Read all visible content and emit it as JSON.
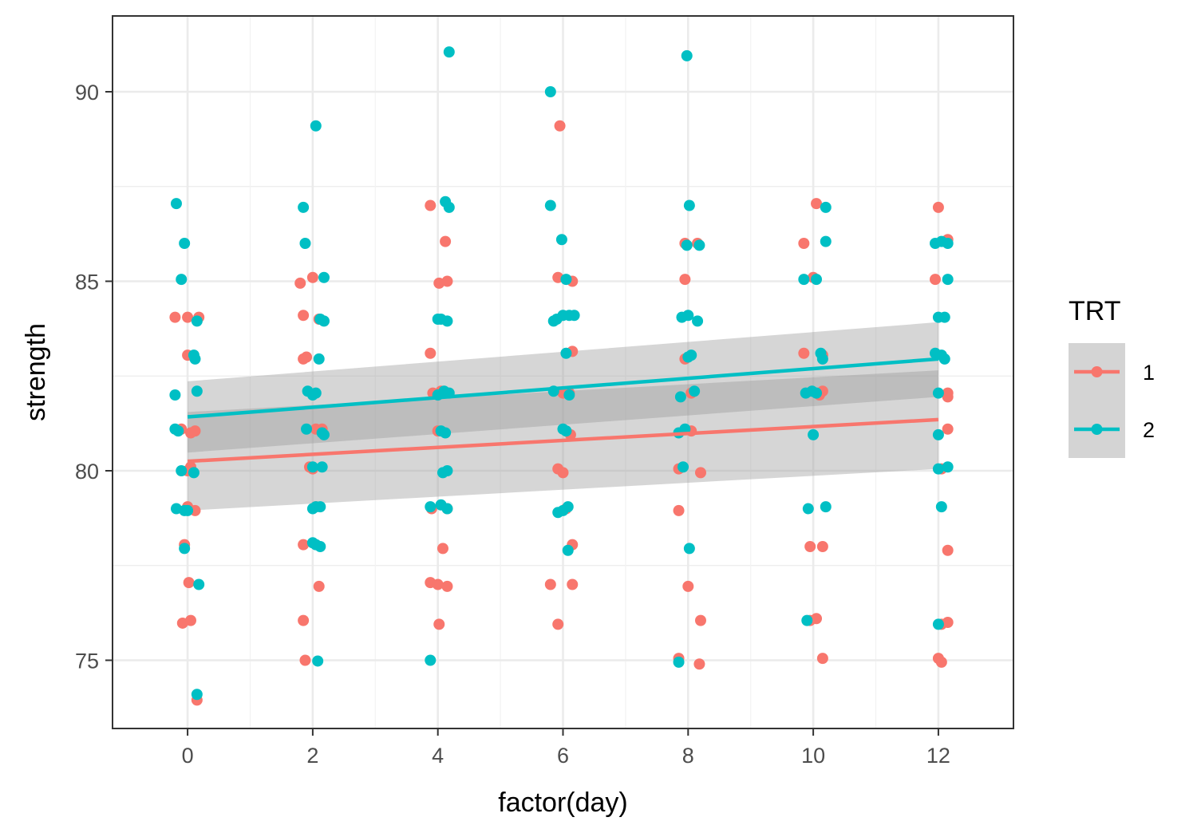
{
  "chart_data": {
    "type": "scatter",
    "xlabel": "factor(day)",
    "ylabel": "strength",
    "xlim": [
      -1.2,
      13.2
    ],
    "ylim": [
      73.2,
      92.0
    ],
    "x_ticks": [
      0,
      2,
      4,
      6,
      8,
      10,
      12
    ],
    "x_tick_labels": [
      "0",
      "2",
      "4",
      "6",
      "8",
      "10",
      "12"
    ],
    "y_ticks": [
      75,
      80,
      85,
      90
    ],
    "y_tick_labels": [
      "75",
      "80",
      "85",
      "90"
    ],
    "y_minor_ticks": [
      77.5,
      82.5,
      87.5
    ],
    "x_minor_ticks": [
      1,
      3,
      5,
      7,
      9,
      11
    ],
    "legend": {
      "title": "TRT",
      "position": "right",
      "entries": [
        {
          "label": "1",
          "color": "#f8766d"
        },
        {
          "label": "2",
          "color": "#00bfc4"
        }
      ]
    },
    "series": [
      {
        "name": "1",
        "color": "#f8766d",
        "fit": {
          "x": [
            0,
            12
          ],
          "y": [
            80.25,
            81.35
          ]
        },
        "band": {
          "x": [
            0,
            12
          ],
          "lower": [
            78.95,
            80.05
          ],
          "upper": [
            81.55,
            82.65
          ]
        },
        "points": [
          {
            "x": -0.2,
            "y": 84.05
          },
          {
            "x": 0.0,
            "y": 84.05
          },
          {
            "x": 0.18,
            "y": 84.05
          },
          {
            "x": 0.0,
            "y": 83.05
          },
          {
            "x": 0.05,
            "y": 81.0
          },
          {
            "x": -0.1,
            "y": 81.1
          },
          {
            "x": 0.12,
            "y": 81.05
          },
          {
            "x": 0.05,
            "y": 80.1
          },
          {
            "x": 0.0,
            "y": 79.05
          },
          {
            "x": 0.12,
            "y": 78.95
          },
          {
            "x": -0.05,
            "y": 78.05
          },
          {
            "x": 0.02,
            "y": 77.05
          },
          {
            "x": -0.08,
            "y": 75.98
          },
          {
            "x": 0.05,
            "y": 76.05
          },
          {
            "x": 0.15,
            "y": 73.95
          },
          {
            "x": 0.0,
            "y": 80.0
          },
          {
            "x": 1.8,
            "y": 84.95
          },
          {
            "x": 2.0,
            "y": 85.1
          },
          {
            "x": 1.85,
            "y": 84.1
          },
          {
            "x": 2.1,
            "y": 84.0
          },
          {
            "x": 1.85,
            "y": 82.95
          },
          {
            "x": 1.9,
            "y": 83.0
          },
          {
            "x": 2.05,
            "y": 81.1
          },
          {
            "x": 2.15,
            "y": 81.1
          },
          {
            "x": 2.0,
            "y": 80.05
          },
          {
            "x": 2.05,
            "y": 79.05
          },
          {
            "x": 1.85,
            "y": 78.05
          },
          {
            "x": 2.1,
            "y": 76.95
          },
          {
            "x": 1.85,
            "y": 76.05
          },
          {
            "x": 1.88,
            "y": 75.0
          },
          {
            "x": 1.95,
            "y": 80.1
          },
          {
            "x": 3.88,
            "y": 87.0
          },
          {
            "x": 4.12,
            "y": 86.05
          },
          {
            "x": 4.02,
            "y": 84.95
          },
          {
            "x": 4.15,
            "y": 85.0
          },
          {
            "x": 3.88,
            "y": 83.1
          },
          {
            "x": 3.92,
            "y": 82.05
          },
          {
            "x": 4.05,
            "y": 82.1
          },
          {
            "x": 4.0,
            "y": 81.05
          },
          {
            "x": 3.9,
            "y": 79.0
          },
          {
            "x": 4.08,
            "y": 77.95
          },
          {
            "x": 3.88,
            "y": 77.05
          },
          {
            "x": 4.0,
            "y": 77.0
          },
          {
            "x": 4.15,
            "y": 76.95
          },
          {
            "x": 4.02,
            "y": 75.95
          },
          {
            "x": 4.15,
            "y": 79.0
          },
          {
            "x": 5.95,
            "y": 89.1
          },
          {
            "x": 5.92,
            "y": 85.1
          },
          {
            "x": 6.15,
            "y": 85.0
          },
          {
            "x": 6.15,
            "y": 83.15
          },
          {
            "x": 6.0,
            "y": 82.05
          },
          {
            "x": 6.1,
            "y": 82.05
          },
          {
            "x": 6.12,
            "y": 80.95
          },
          {
            "x": 5.92,
            "y": 80.05
          },
          {
            "x": 6.0,
            "y": 79.95
          },
          {
            "x": 6.05,
            "y": 79.0
          },
          {
            "x": 6.15,
            "y": 78.05
          },
          {
            "x": 5.8,
            "y": 77.0
          },
          {
            "x": 6.15,
            "y": 77.0
          },
          {
            "x": 5.92,
            "y": 75.95
          },
          {
            "x": 7.95,
            "y": 86.0
          },
          {
            "x": 8.15,
            "y": 86.0
          },
          {
            "x": 7.95,
            "y": 85.05
          },
          {
            "x": 7.95,
            "y": 82.95
          },
          {
            "x": 8.05,
            "y": 82.05
          },
          {
            "x": 8.05,
            "y": 81.05
          },
          {
            "x": 7.85,
            "y": 80.05
          },
          {
            "x": 8.2,
            "y": 79.95
          },
          {
            "x": 7.85,
            "y": 78.95
          },
          {
            "x": 8.0,
            "y": 76.95
          },
          {
            "x": 8.2,
            "y": 76.05
          },
          {
            "x": 7.85,
            "y": 75.05
          },
          {
            "x": 8.18,
            "y": 74.9
          },
          {
            "x": 10.05,
            "y": 87.05
          },
          {
            "x": 9.85,
            "y": 86.0
          },
          {
            "x": 10.0,
            "y": 85.1
          },
          {
            "x": 9.85,
            "y": 83.1
          },
          {
            "x": 10.15,
            "y": 83.05
          },
          {
            "x": 10.1,
            "y": 82.0
          },
          {
            "x": 10.15,
            "y": 82.1
          },
          {
            "x": 9.95,
            "y": 78.0
          },
          {
            "x": 10.15,
            "y": 78.0
          },
          {
            "x": 9.95,
            "y": 76.05
          },
          {
            "x": 10.05,
            "y": 76.1
          },
          {
            "x": 10.15,
            "y": 75.05
          },
          {
            "x": 12.0,
            "y": 86.95
          },
          {
            "x": 12.1,
            "y": 86.05
          },
          {
            "x": 12.15,
            "y": 86.1
          },
          {
            "x": 11.95,
            "y": 85.05
          },
          {
            "x": 12.15,
            "y": 82.05
          },
          {
            "x": 12.15,
            "y": 81.95
          },
          {
            "x": 12.15,
            "y": 81.1
          },
          {
            "x": 12.15,
            "y": 77.9
          },
          {
            "x": 12.15,
            "y": 76.0
          },
          {
            "x": 12.05,
            "y": 75.95
          },
          {
            "x": 12.0,
            "y": 75.05
          },
          {
            "x": 12.05,
            "y": 74.95
          },
          {
            "x": 12.05,
            "y": 80.05
          }
        ]
      },
      {
        "name": "2",
        "color": "#00bfc4",
        "fit": {
          "x": [
            0,
            12
          ],
          "y": [
            81.42,
            82.95
          ]
        },
        "band": {
          "x": [
            0,
            12
          ],
          "lower": [
            80.48,
            81.95
          ],
          "upper": [
            82.36,
            83.92
          ]
        },
        "points": [
          {
            "x": -0.18,
            "y": 87.05
          },
          {
            "x": -0.05,
            "y": 86.0
          },
          {
            "x": -0.1,
            "y": 85.05
          },
          {
            "x": 0.15,
            "y": 83.95
          },
          {
            "x": 0.1,
            "y": 83.05
          },
          {
            "x": 0.12,
            "y": 82.95
          },
          {
            "x": -0.2,
            "y": 82.0
          },
          {
            "x": 0.15,
            "y": 82.1
          },
          {
            "x": -0.2,
            "y": 81.1
          },
          {
            "x": -0.15,
            "y": 81.05
          },
          {
            "x": -0.1,
            "y": 80.0
          },
          {
            "x": 0.1,
            "y": 79.95
          },
          {
            "x": -0.18,
            "y": 79.0
          },
          {
            "x": -0.05,
            "y": 78.95
          },
          {
            "x": 0.0,
            "y": 78.95
          },
          {
            "x": -0.05,
            "y": 77.95
          },
          {
            "x": 0.18,
            "y": 77.0
          },
          {
            "x": 0.15,
            "y": 74.1
          },
          {
            "x": 2.05,
            "y": 89.1
          },
          {
            "x": 1.85,
            "y": 86.95
          },
          {
            "x": 1.88,
            "y": 86.0
          },
          {
            "x": 2.18,
            "y": 85.1
          },
          {
            "x": 2.12,
            "y": 84.0
          },
          {
            "x": 2.18,
            "y": 83.95
          },
          {
            "x": 2.1,
            "y": 82.95
          },
          {
            "x": 1.92,
            "y": 82.1
          },
          {
            "x": 2.05,
            "y": 82.05
          },
          {
            "x": 2.0,
            "y": 82.0
          },
          {
            "x": 1.9,
            "y": 81.1
          },
          {
            "x": 2.15,
            "y": 81.0
          },
          {
            "x": 2.18,
            "y": 80.95
          },
          {
            "x": 2.0,
            "y": 80.1
          },
          {
            "x": 2.15,
            "y": 80.1
          },
          {
            "x": 2.0,
            "y": 79.0
          },
          {
            "x": 2.05,
            "y": 79.05
          },
          {
            "x": 2.12,
            "y": 79.05
          },
          {
            "x": 2.0,
            "y": 78.1
          },
          {
            "x": 2.05,
            "y": 78.05
          },
          {
            "x": 2.12,
            "y": 78.0
          },
          {
            "x": 2.08,
            "y": 74.98
          },
          {
            "x": 4.18,
            "y": 91.05
          },
          {
            "x": 4.12,
            "y": 87.1
          },
          {
            "x": 4.18,
            "y": 86.95
          },
          {
            "x": 4.0,
            "y": 84.0
          },
          {
            "x": 4.05,
            "y": 84.0
          },
          {
            "x": 4.15,
            "y": 83.95
          },
          {
            "x": 4.1,
            "y": 82.1
          },
          {
            "x": 4.18,
            "y": 82.05
          },
          {
            "x": 4.0,
            "y": 82.0
          },
          {
            "x": 4.05,
            "y": 81.05
          },
          {
            "x": 4.12,
            "y": 81.0
          },
          {
            "x": 4.15,
            "y": 80.0
          },
          {
            "x": 4.08,
            "y": 79.95
          },
          {
            "x": 3.88,
            "y": 79.05
          },
          {
            "x": 4.05,
            "y": 79.1
          },
          {
            "x": 4.15,
            "y": 79.0
          },
          {
            "x": 3.88,
            "y": 75.0
          },
          {
            "x": 5.8,
            "y": 90.0
          },
          {
            "x": 5.8,
            "y": 87.0
          },
          {
            "x": 5.98,
            "y": 86.1
          },
          {
            "x": 5.85,
            "y": 83.95
          },
          {
            "x": 5.9,
            "y": 84.0
          },
          {
            "x": 6.0,
            "y": 84.1
          },
          {
            "x": 6.1,
            "y": 84.1
          },
          {
            "x": 6.18,
            "y": 84.1
          },
          {
            "x": 6.05,
            "y": 85.05
          },
          {
            "x": 6.05,
            "y": 83.1
          },
          {
            "x": 5.85,
            "y": 82.1
          },
          {
            "x": 6.1,
            "y": 82.0
          },
          {
            "x": 6.0,
            "y": 81.1
          },
          {
            "x": 6.05,
            "y": 81.05
          },
          {
            "x": 5.92,
            "y": 78.9
          },
          {
            "x": 6.0,
            "y": 78.95
          },
          {
            "x": 6.08,
            "y": 79.05
          },
          {
            "x": 6.08,
            "y": 77.9
          },
          {
            "x": 7.98,
            "y": 90.95
          },
          {
            "x": 8.02,
            "y": 87.0
          },
          {
            "x": 7.98,
            "y": 85.95
          },
          {
            "x": 8.18,
            "y": 85.95
          },
          {
            "x": 7.9,
            "y": 84.05
          },
          {
            "x": 8.0,
            "y": 84.1
          },
          {
            "x": 8.15,
            "y": 83.95
          },
          {
            "x": 8.0,
            "y": 83.0
          },
          {
            "x": 8.05,
            "y": 83.05
          },
          {
            "x": 7.88,
            "y": 81.95
          },
          {
            "x": 8.1,
            "y": 82.1
          },
          {
            "x": 7.85,
            "y": 81.0
          },
          {
            "x": 7.95,
            "y": 81.1
          },
          {
            "x": 7.92,
            "y": 80.1
          },
          {
            "x": 8.02,
            "y": 77.95
          },
          {
            "x": 7.85,
            "y": 74.95
          },
          {
            "x": 9.85,
            "y": 85.05
          },
          {
            "x": 10.05,
            "y": 85.05
          },
          {
            "x": 10.2,
            "y": 86.05
          },
          {
            "x": 10.2,
            "y": 86.95
          },
          {
            "x": 10.12,
            "y": 83.1
          },
          {
            "x": 10.15,
            "y": 82.95
          },
          {
            "x": 9.88,
            "y": 82.05
          },
          {
            "x": 9.98,
            "y": 82.1
          },
          {
            "x": 10.05,
            "y": 82.05
          },
          {
            "x": 10.0,
            "y": 80.95
          },
          {
            "x": 9.92,
            "y": 79.0
          },
          {
            "x": 10.2,
            "y": 79.05
          },
          {
            "x": 9.9,
            "y": 76.05
          },
          {
            "x": 11.95,
            "y": 86.0
          },
          {
            "x": 12.05,
            "y": 86.05
          },
          {
            "x": 12.15,
            "y": 86.0
          },
          {
            "x": 12.15,
            "y": 85.05
          },
          {
            "x": 12.0,
            "y": 84.05
          },
          {
            "x": 12.1,
            "y": 84.05
          },
          {
            "x": 11.95,
            "y": 83.1
          },
          {
            "x": 12.05,
            "y": 83.05
          },
          {
            "x": 12.1,
            "y": 82.95
          },
          {
            "x": 12.0,
            "y": 82.05
          },
          {
            "x": 12.0,
            "y": 80.95
          },
          {
            "x": 12.0,
            "y": 80.05
          },
          {
            "x": 12.15,
            "y": 80.1
          },
          {
            "x": 12.05,
            "y": 79.05
          },
          {
            "x": 12.0,
            "y": 75.95
          }
        ]
      }
    ]
  }
}
